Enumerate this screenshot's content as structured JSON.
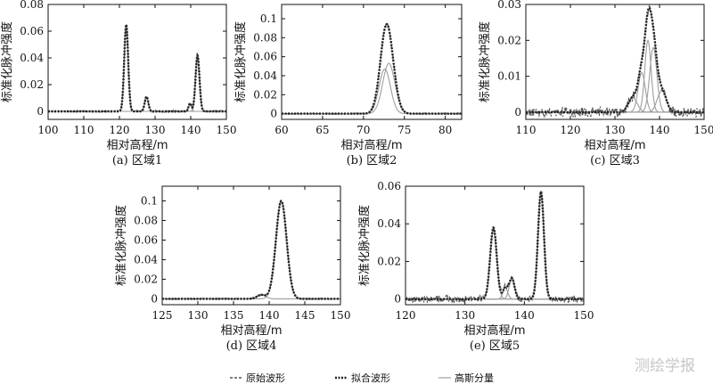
{
  "legend": {
    "raw": "原始波形",
    "fit": "拟合波形",
    "gauss": "高斯分量"
  },
  "watermark": "测绘学报",
  "colors": {
    "raw": "#555555",
    "fit": "#222222",
    "gauss": "#9e9e9e",
    "axis": "#111111"
  },
  "chart_data": [
    {
      "type": "line",
      "caption": "(a) 区域1",
      "xlabel": "相对高程/m",
      "ylabel": "标准化脉冲强度",
      "xlim": [
        100,
        150
      ],
      "ylim": [
        -0.006,
        0.08
      ],
      "xticks": [
        "100",
        "110",
        "120",
        "130",
        "140",
        "150"
      ],
      "yticks": [
        "0",
        "0.02",
        "0.04",
        "0.06",
        "0.08"
      ],
      "xtick_values": [
        100,
        110,
        120,
        130,
        140,
        150
      ],
      "ytick_values": [
        0,
        0.02,
        0.04,
        0.06,
        0.08
      ],
      "noise": 0.0004,
      "components": [
        {
          "center": 121.9,
          "amplitude": 0.065,
          "sigma": 0.55
        },
        {
          "center": 127.6,
          "amplitude": 0.011,
          "sigma": 0.5
        },
        {
          "center": 139.8,
          "amplitude": 0.006,
          "sigma": 0.4
        },
        {
          "center": 141.9,
          "amplitude": 0.042,
          "sigma": 0.55
        }
      ]
    },
    {
      "type": "line",
      "caption": "(b) 区域2",
      "xlabel": "相对高程/m",
      "ylabel": "标准化脉冲强度",
      "xlim": [
        60,
        82
      ],
      "ylim": [
        -0.006,
        0.115
      ],
      "xticks": [
        "60",
        "65",
        "70",
        "75",
        "80"
      ],
      "yticks": [
        "0",
        "0.02",
        "0.04",
        "0.06",
        "0.08",
        "0.1"
      ],
      "xtick_values": [
        60,
        65,
        70,
        75,
        80
      ],
      "ytick_values": [
        0,
        0.02,
        0.04,
        0.06,
        0.08,
        0.1
      ],
      "noise": 0.0004,
      "components": [
        {
          "center": 72.6,
          "amplitude": 0.047,
          "sigma": 0.7
        },
        {
          "center": 73.1,
          "amplitude": 0.053,
          "sigma": 0.75
        }
      ]
    },
    {
      "type": "line",
      "caption": "(c) 区域3",
      "xlabel": "相对高程/m",
      "ylabel": "标准化脉冲强度",
      "xlim": [
        110,
        150
      ],
      "ylim": [
        -0.002,
        0.03
      ],
      "xticks": [
        "110",
        "120",
        "130",
        "140",
        "150"
      ],
      "yticks": [
        "0",
        "0.01",
        "0.02",
        "0.03"
      ],
      "xtick_values": [
        110,
        120,
        130,
        140,
        150
      ],
      "ytick_values": [
        0,
        0.01,
        0.02,
        0.03
      ],
      "noise": 0.0009,
      "components": [
        {
          "center": 134.0,
          "amplitude": 0.004,
          "sigma": 1.0
        },
        {
          "center": 136.0,
          "amplitude": 0.011,
          "sigma": 0.8
        },
        {
          "center": 137.4,
          "amplitude": 0.02,
          "sigma": 0.7
        },
        {
          "center": 138.6,
          "amplitude": 0.018,
          "sigma": 0.8
        },
        {
          "center": 140.5,
          "amplitude": 0.006,
          "sigma": 1.0
        }
      ]
    },
    {
      "type": "line",
      "caption": "(d) 区域4",
      "xlabel": "相对高程/m",
      "ylabel": "标准化脉冲强度",
      "xlim": [
        125,
        150
      ],
      "ylim": [
        -0.006,
        0.115
      ],
      "xticks": [
        "125",
        "130",
        "135",
        "140",
        "145",
        "150"
      ],
      "yticks": [
        "0",
        "0.02",
        "0.04",
        "0.06",
        "0.08",
        "0.1"
      ],
      "xtick_values": [
        125,
        130,
        135,
        140,
        145,
        150
      ],
      "ytick_values": [
        0,
        0.02,
        0.04,
        0.06,
        0.08,
        0.1
      ],
      "noise": 0.0004,
      "components": [
        {
          "center": 138.9,
          "amplitude": 0.004,
          "sigma": 0.6
        },
        {
          "center": 141.7,
          "amplitude": 0.1,
          "sigma": 0.75
        }
      ]
    },
    {
      "type": "line",
      "caption": "(e) 区域5",
      "xlabel": "相对高程/m",
      "ylabel": "标准化脉冲强度",
      "xlim": [
        120,
        150
      ],
      "ylim": [
        -0.003,
        0.06
      ],
      "xticks": [
        "120",
        "130",
        "140",
        "150"
      ],
      "yticks": [
        "0",
        "0.02",
        "0.04",
        "0.06"
      ],
      "xtick_values": [
        120,
        130,
        140,
        150
      ],
      "ytick_values": [
        0,
        0.02,
        0.04,
        0.06
      ],
      "noise": 0.0012,
      "components": [
        {
          "center": 134.8,
          "amplitude": 0.038,
          "sigma": 0.55
        },
        {
          "center": 136.8,
          "amplitude": 0.006,
          "sigma": 0.4
        },
        {
          "center": 137.9,
          "amplitude": 0.011,
          "sigma": 0.45
        },
        {
          "center": 142.8,
          "amplitude": 0.057,
          "sigma": 0.5
        }
      ]
    }
  ]
}
